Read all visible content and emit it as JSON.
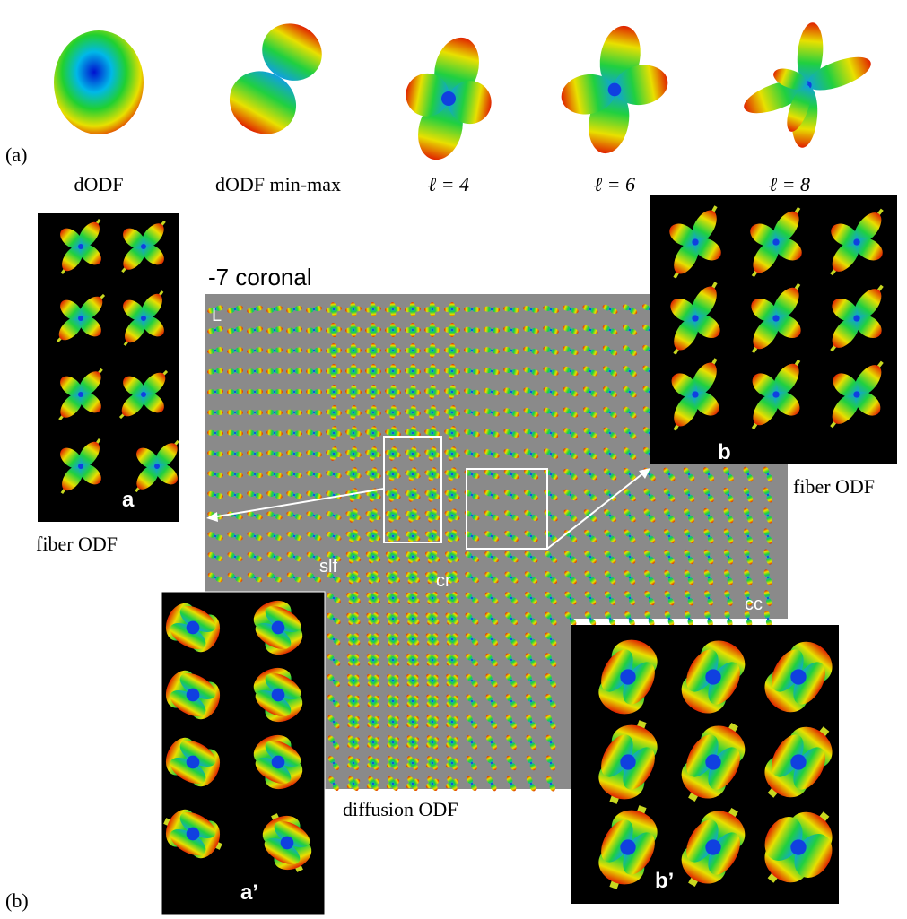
{
  "top_row": {
    "panel_label": "(a)",
    "captions": [
      "dODF",
      "dODF min-max",
      "ℓ = 4",
      "ℓ = 6",
      "ℓ = 8"
    ]
  },
  "panel_b": {
    "panel_label": "(b)",
    "slice_title": "-7 coronal",
    "orientation": "L",
    "region_labels": [
      "slf",
      "cr",
      "cc"
    ],
    "center_caption": "diffusion ODF",
    "insets": [
      {
        "letter": "a",
        "caption": "fiber ODF"
      },
      {
        "letter": "b",
        "caption": "fiber ODF"
      },
      {
        "letter": "a’"
      },
      {
        "letter": "b’"
      }
    ]
  }
}
